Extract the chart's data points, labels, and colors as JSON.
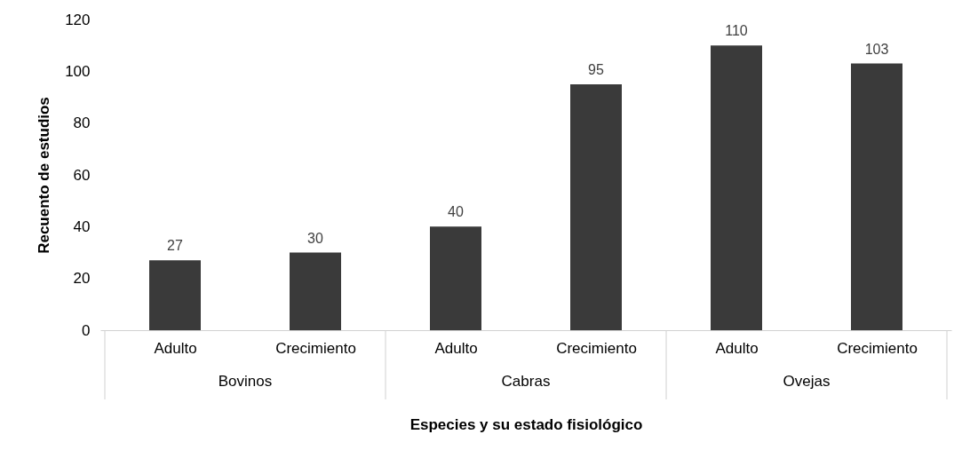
{
  "chart_data": {
    "type": "bar",
    "categories": [
      "Adulto",
      "Crecimiento",
      "Adulto",
      "Crecimiento",
      "Adulto",
      "Crecimiento"
    ],
    "values": [
      27,
      30,
      40,
      95,
      110,
      103
    ],
    "color": "#3a3a3a",
    "xlabel": "Especies y su estado fisiológico",
    "ylabel": "Recuento de estudios",
    "ylim": [
      0,
      120
    ],
    "yticks": [
      0,
      20,
      40,
      60,
      80,
      100,
      120
    ],
    "data_labels": true,
    "grid": false,
    "annotations": [
      "Bovinos",
      "Cabras",
      "Ovejas"
    ]
  }
}
